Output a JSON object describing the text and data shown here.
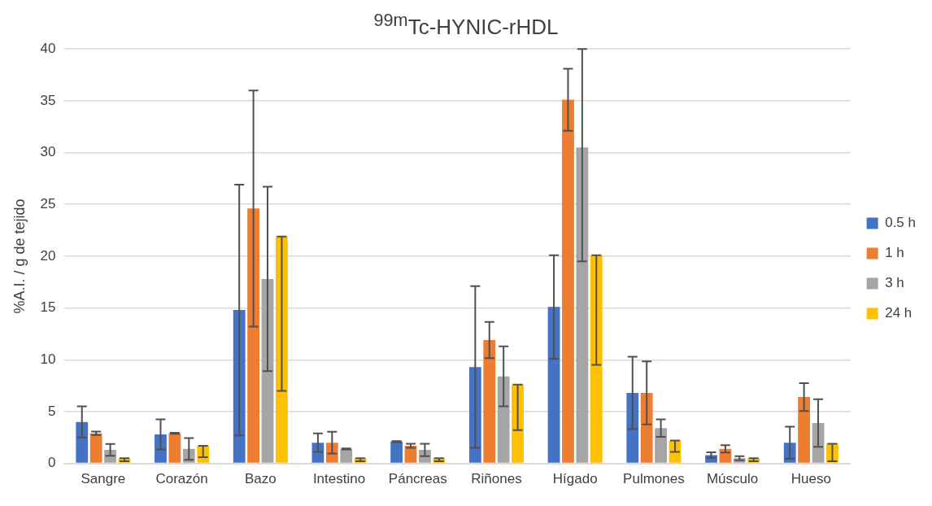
{
  "chart_data": {
    "type": "bar",
    "title": "$^{99m}$Tc-HYNIC-rHDL",
    "ylabel": "%A.I. / g de tejido",
    "categories": [
      "Sangre",
      "Corazón",
      "Bazo",
      "Intestino",
      "Páncreas",
      "Riñones",
      "Hígado",
      "Pulmones",
      "Músculo",
      "Hueso"
    ],
    "series": [
      {
        "name": "0.5 h",
        "color": "#4472c4",
        "values": [
          4.0,
          2.8,
          14.8,
          2.0,
          2.1,
          9.3,
          15.1,
          6.8,
          0.8,
          2.0
        ],
        "errors": [
          1.5,
          1.45,
          12.1,
          0.9,
          0.05,
          7.8,
          5.0,
          3.5,
          0.27,
          1.55
        ]
      },
      {
        "name": "1 h",
        "color": "#ed7d31",
        "values": [
          2.9,
          2.9,
          24.6,
          2.0,
          1.7,
          11.9,
          35.1,
          6.8,
          1.4,
          6.4
        ],
        "errors": [
          0.17,
          0.05,
          11.4,
          1.05,
          0.2,
          1.75,
          3.0,
          3.05,
          0.36,
          1.35
        ]
      },
      {
        "name": "3 h",
        "color": "#a5a5a5",
        "values": [
          1.3,
          1.4,
          17.8,
          1.4,
          1.3,
          8.4,
          30.5,
          3.4,
          0.5,
          3.9
        ],
        "errors": [
          0.57,
          1.05,
          8.9,
          0.05,
          0.6,
          2.9,
          [
            19.5,
            40
          ],
          0.84,
          0.2,
          2.3
        ]
      },
      {
        "name": "24 h",
        "color": "#ffc000",
        "values": [
          0.5,
          1.7,
          21.9,
          0.5,
          0.5,
          7.6,
          20.1,
          2.2,
          0.5,
          1.9
        ],
        "errors": [
          [
            0.2,
            0.5
          ],
          [
            0.6,
            1.7
          ],
          [
            7.0,
            21.9
          ],
          [
            0.2,
            0.5
          ],
          [
            0.2,
            0.5
          ],
          [
            3.2,
            7.6
          ],
          [
            9.5,
            20.1
          ],
          [
            1.1,
            2.2
          ],
          [
            0.2,
            0.5
          ],
          [
            0.2,
            1.9
          ]
        ]
      }
    ],
    "ylim": [
      0,
      40
    ],
    "yticks": [
      0,
      5,
      10,
      15,
      20,
      25,
      30,
      35,
      40
    ],
    "grid": "y",
    "legend": "right"
  }
}
